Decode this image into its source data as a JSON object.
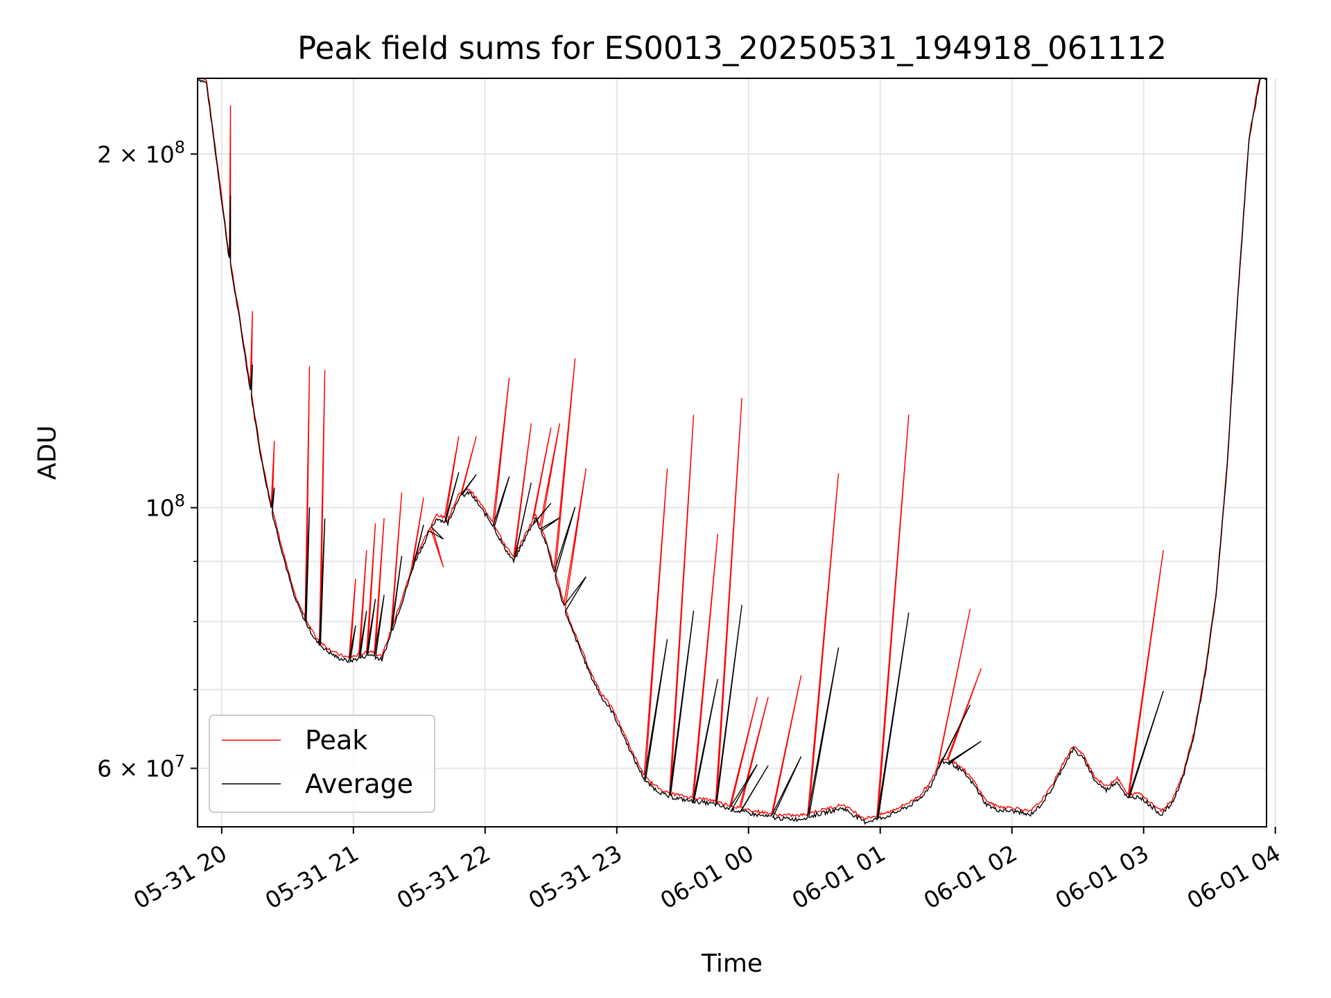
{
  "chart_data": {
    "type": "line",
    "title": "Peak field sums for ES0013_20250531_194918_061112",
    "xlabel": "Time",
    "ylabel": "ADU",
    "yscale": "log",
    "grid": true,
    "legend_position": "lower-left",
    "xlim": [
      "05-31 19:49",
      "06-01 03:56"
    ],
    "ylim": [
      53500000,
      232000000
    ],
    "x_ticks": [
      "05-31 20",
      "05-31 21",
      "05-31 22",
      "05-31 23",
      "06-01 00",
      "06-01 01",
      "06-01 02",
      "06-01 03",
      "06-01 04"
    ],
    "y_major_ticks": [
      {
        "value": 60000000,
        "label": "6 × 10^7",
        "mantissa": "6",
        "exponent": "7"
      },
      {
        "value": 100000000,
        "label": "10^8",
        "mantissa": "",
        "exponent": "8"
      },
      {
        "value": 200000000,
        "label": "2 × 10^8",
        "mantissa": "2",
        "exponent": "8"
      }
    ],
    "y_minor_ticks": [
      70000000,
      80000000,
      90000000
    ],
    "series": [
      {
        "name": "Peak",
        "color": "#ff0000",
        "baseline": [
          [
            "05-31 19:49",
            232
          ],
          [
            "05-31 19:53",
            230
          ],
          [
            "05-31 19:58",
            195
          ],
          [
            "05-31 20:03",
            165
          ],
          [
            "05-31 20:08",
            145
          ],
          [
            "05-31 20:13",
            126
          ],
          [
            "05-31 20:18",
            110
          ],
          [
            "05-31 20:23",
            99
          ],
          [
            "05-31 20:28",
            91
          ],
          [
            "05-31 20:33",
            84
          ],
          [
            "05-31 20:38",
            80
          ],
          [
            "05-31 20:43",
            77
          ],
          [
            "05-31 20:48",
            75.5
          ],
          [
            "05-31 20:53",
            74.5
          ],
          [
            "05-31 20:58",
            74
          ],
          [
            "05-31 21:03",
            74.5
          ],
          [
            "05-31 21:08",
            75
          ],
          [
            "05-31 21:13",
            74.2
          ],
          [
            "05-31 21:18",
            79
          ],
          [
            "05-31 21:23",
            84
          ],
          [
            "05-31 21:28",
            90
          ],
          [
            "05-31 21:33",
            94
          ],
          [
            "05-31 21:38",
            98
          ],
          [
            "05-31 21:43",
            97
          ],
          [
            "05-31 21:48",
            102
          ],
          [
            "05-31 21:53",
            103
          ],
          [
            "05-31 21:58",
            100
          ],
          [
            "05-31 22:03",
            97
          ],
          [
            "05-31 22:08",
            93
          ],
          [
            "05-31 22:13",
            90
          ],
          [
            "05-31 22:18",
            94
          ],
          [
            "05-31 22:23",
            98
          ],
          [
            "05-31 22:28",
            93
          ],
          [
            "05-31 22:33",
            86
          ],
          [
            "05-31 22:38",
            80
          ],
          [
            "05-31 22:43",
            76
          ],
          [
            "05-31 22:48",
            72
          ],
          [
            "05-31 22:53",
            69
          ],
          [
            "05-31 22:58",
            67
          ],
          [
            "05-31 23:03",
            64
          ],
          [
            "05-31 23:08",
            61
          ],
          [
            "05-31 23:13",
            58.5
          ],
          [
            "05-31 23:18",
            57.5
          ],
          [
            "05-31 23:23",
            56.8
          ],
          [
            "05-31 23:33",
            56.3
          ],
          [
            "05-31 23:43",
            56
          ],
          [
            "05-31 23:53",
            55.3
          ],
          [
            "06-01 00:03",
            54.8
          ],
          [
            "06-01 00:13",
            54.4
          ],
          [
            "06-01 00:23",
            54.3
          ],
          [
            "06-01 00:33",
            54.9
          ],
          [
            "06-01 00:43",
            55.5
          ],
          [
            "06-01 00:53",
            54
          ],
          [
            "06-01 01:03",
            54.6
          ],
          [
            "06-01 01:13",
            55.7
          ],
          [
            "06-01 01:18",
            56.5
          ],
          [
            "06-01 01:23",
            58
          ],
          [
            "06-01 01:28",
            60.8
          ],
          [
            "06-01 01:33",
            60.5
          ],
          [
            "06-01 01:38",
            59.5
          ],
          [
            "06-01 01:43",
            58
          ],
          [
            "06-01 01:48",
            56
          ],
          [
            "06-01 01:53",
            55.3
          ],
          [
            "06-01 02:03",
            55.1
          ],
          [
            "06-01 02:08",
            54.7
          ],
          [
            "06-01 02:13",
            55.8
          ],
          [
            "06-01 02:18",
            57.5
          ],
          [
            "06-01 02:23",
            60
          ],
          [
            "06-01 02:28",
            62.3
          ],
          [
            "06-01 02:33",
            61
          ],
          [
            "06-01 02:38",
            58.5
          ],
          [
            "06-01 02:43",
            57.5
          ],
          [
            "06-01 02:48",
            58.5
          ],
          [
            "06-01 02:53",
            56.5
          ],
          [
            "06-01 02:58",
            56.8
          ],
          [
            "06-01 03:03",
            55.8
          ],
          [
            "06-01 03:08",
            54.8
          ],
          [
            "06-01 03:13",
            56
          ],
          [
            "06-01 03:18",
            59
          ],
          [
            "06-01 03:23",
            64
          ],
          [
            "06-01 03:28",
            72
          ],
          [
            "06-01 03:33",
            84
          ],
          [
            "06-01 03:38",
            108
          ],
          [
            "06-01 03:43",
            152
          ],
          [
            "06-01 03:48",
            205
          ],
          [
            "06-01 03:53",
            232
          ]
        ],
        "spikes": [
          [
            "05-31 20:04",
            220
          ],
          [
            "05-31 20:14",
            147
          ],
          [
            "05-31 20:24",
            114
          ],
          [
            "05-31 20:40",
            132
          ],
          [
            "05-31 20:47",
            131
          ],
          [
            "05-31 21:01",
            87
          ],
          [
            "05-31 21:06",
            92
          ],
          [
            "05-31 21:10",
            97
          ],
          [
            "05-31 21:14",
            98
          ],
          [
            "05-31 21:22",
            103
          ],
          [
            "05-31 21:32",
            102
          ],
          [
            "05-31 21:41",
            89
          ],
          [
            "05-31 21:48",
            115
          ],
          [
            "05-31 21:56",
            115
          ],
          [
            "05-31 22:11",
            129
          ],
          [
            "05-31 22:21",
            118
          ],
          [
            "05-31 22:30",
            117
          ],
          [
            "05-31 22:34",
            118
          ],
          [
            "05-31 22:41",
            134
          ],
          [
            "05-31 22:46",
            108
          ],
          [
            "05-31 23:23",
            108
          ],
          [
            "05-31 23:35",
            120
          ],
          [
            "05-31 23:46",
            95
          ],
          [
            "05-31 23:57",
            124
          ],
          [
            "06-01 00:04",
            69
          ],
          [
            "06-01 00:09",
            69
          ],
          [
            "06-01 00:24",
            72
          ],
          [
            "06-01 00:41",
            107
          ],
          [
            "06-01 01:13",
            120
          ],
          [
            "06-01 01:41",
            82
          ],
          [
            "06-01 01:46",
            73
          ],
          [
            "06-01 03:09",
            92
          ]
        ]
      },
      {
        "name": "Average",
        "color": "#000000",
        "note_follows": "Peak baseline"
      }
    ]
  }
}
